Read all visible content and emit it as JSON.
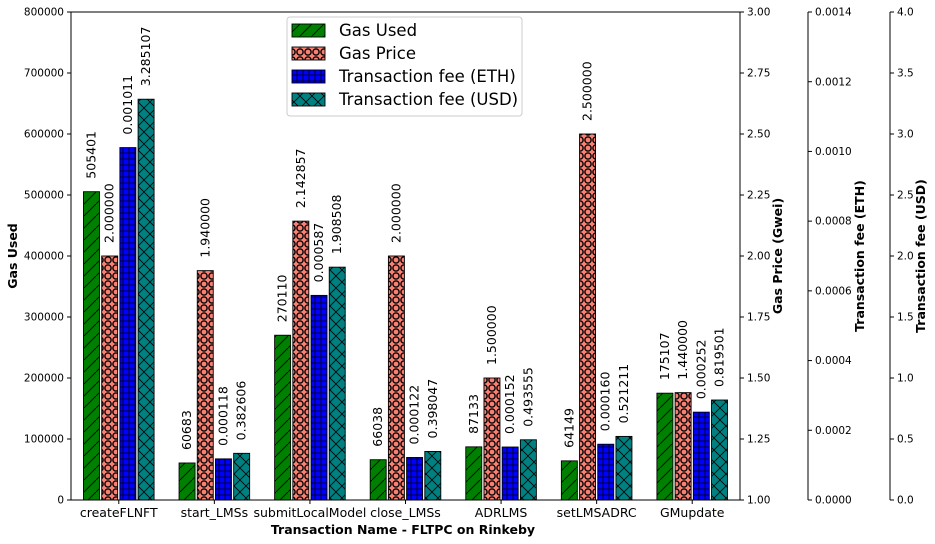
{
  "chart_data": {
    "type": "bar",
    "xlabel": "Transaction Name - FLTPC on Rinkeby",
    "categories": [
      "createFLNFT",
      "start_LMSs",
      "submitLocalModel",
      "close_LMSs",
      "ADRLMS",
      "setLMSADRC",
      "GMupdate"
    ],
    "series": [
      {
        "name": "Gas Used",
        "axis": "gas_used",
        "values": [
          505401,
          60683,
          270110,
          66038,
          87133,
          64149,
          175107
        ],
        "labels": [
          "505401",
          "60683",
          "270110",
          "66038",
          "87133",
          "64149",
          "175107"
        ],
        "color": "#008000",
        "hatch": "diagonal"
      },
      {
        "name": "Gas Price",
        "axis": "gas_price",
        "values": [
          2.0,
          1.94,
          2.142857,
          2.0,
          1.5,
          2.5,
          1.44
        ],
        "labels": [
          "2.000000",
          "1.940000",
          "2.142857",
          "2.000000",
          "1.500000",
          "2.500000",
          "1.440000"
        ],
        "color": "#fa8072",
        "hatch": "circles"
      },
      {
        "name": "Transaction fee (ETH)",
        "axis": "fee_eth",
        "values": [
          0.001011,
          0.000118,
          0.000587,
          0.000122,
          0.000152,
          0.00016,
          0.000252
        ],
        "labels": [
          "0.001011",
          "0.000118",
          "0.000587",
          "0.000122",
          "0.000152",
          "0.000160",
          "0.000252"
        ],
        "color": "#0000ff",
        "hatch": "plus"
      },
      {
        "name": "Transaction fee (USD)",
        "axis": "fee_usd",
        "values": [
          3.285107,
          0.382606,
          1.908508,
          0.398047,
          0.493555,
          0.521211,
          0.819501
        ],
        "labels": [
          "3.285107",
          "0.382606",
          "1.908508",
          "0.398047",
          "0.493555",
          "0.521211",
          "0.819501"
        ],
        "color": "#008080",
        "hatch": "cross"
      }
    ],
    "axes": {
      "gas_used": {
        "label": "Gas Used",
        "ylim": [
          0,
          800000
        ],
        "ticks": [
          0,
          100000,
          200000,
          300000,
          400000,
          500000,
          600000,
          700000,
          800000
        ],
        "tick_labels": [
          "0",
          "100000",
          "200000",
          "300000",
          "400000",
          "500000",
          "600000",
          "700000",
          "800000"
        ]
      },
      "gas_price": {
        "label": "Gas Price (Gwei)",
        "ylim": [
          1.0,
          3.0
        ],
        "ticks": [
          1.0,
          1.25,
          1.5,
          1.75,
          2.0,
          2.25,
          2.5,
          2.75,
          3.0
        ],
        "tick_labels": [
          "1.00",
          "1.25",
          "1.50",
          "1.75",
          "2.00",
          "2.25",
          "2.50",
          "2.75",
          "3.00"
        ]
      },
      "fee_eth": {
        "label": "Transaction fee (ETH)",
        "ylim": [
          0,
          0.0014
        ],
        "ticks": [
          0,
          0.0002,
          0.0004,
          0.0006,
          0.0008,
          0.001,
          0.0012,
          0.0014
        ],
        "tick_labels": [
          "0.0000",
          "0.0002",
          "0.0004",
          "0.0006",
          "0.0008",
          "0.0010",
          "0.0012",
          "0.0014"
        ]
      },
      "fee_usd": {
        "label": "Transaction fee (USD)",
        "ylim": [
          0,
          4.0
        ],
        "ticks": [
          0,
          0.5,
          1.0,
          1.5,
          2.0,
          2.5,
          3.0,
          3.5,
          4.0
        ],
        "tick_labels": [
          "0.0",
          "0.5",
          "1.0",
          "1.5",
          "2.0",
          "2.5",
          "3.0",
          "3.5",
          "4.0"
        ]
      }
    },
    "legend": {
      "placement": "top-center",
      "entries": [
        "Gas Used",
        "Gas Price",
        "Transaction fee (ETH)",
        "Transaction fee (USD)"
      ]
    },
    "grid": false
  }
}
